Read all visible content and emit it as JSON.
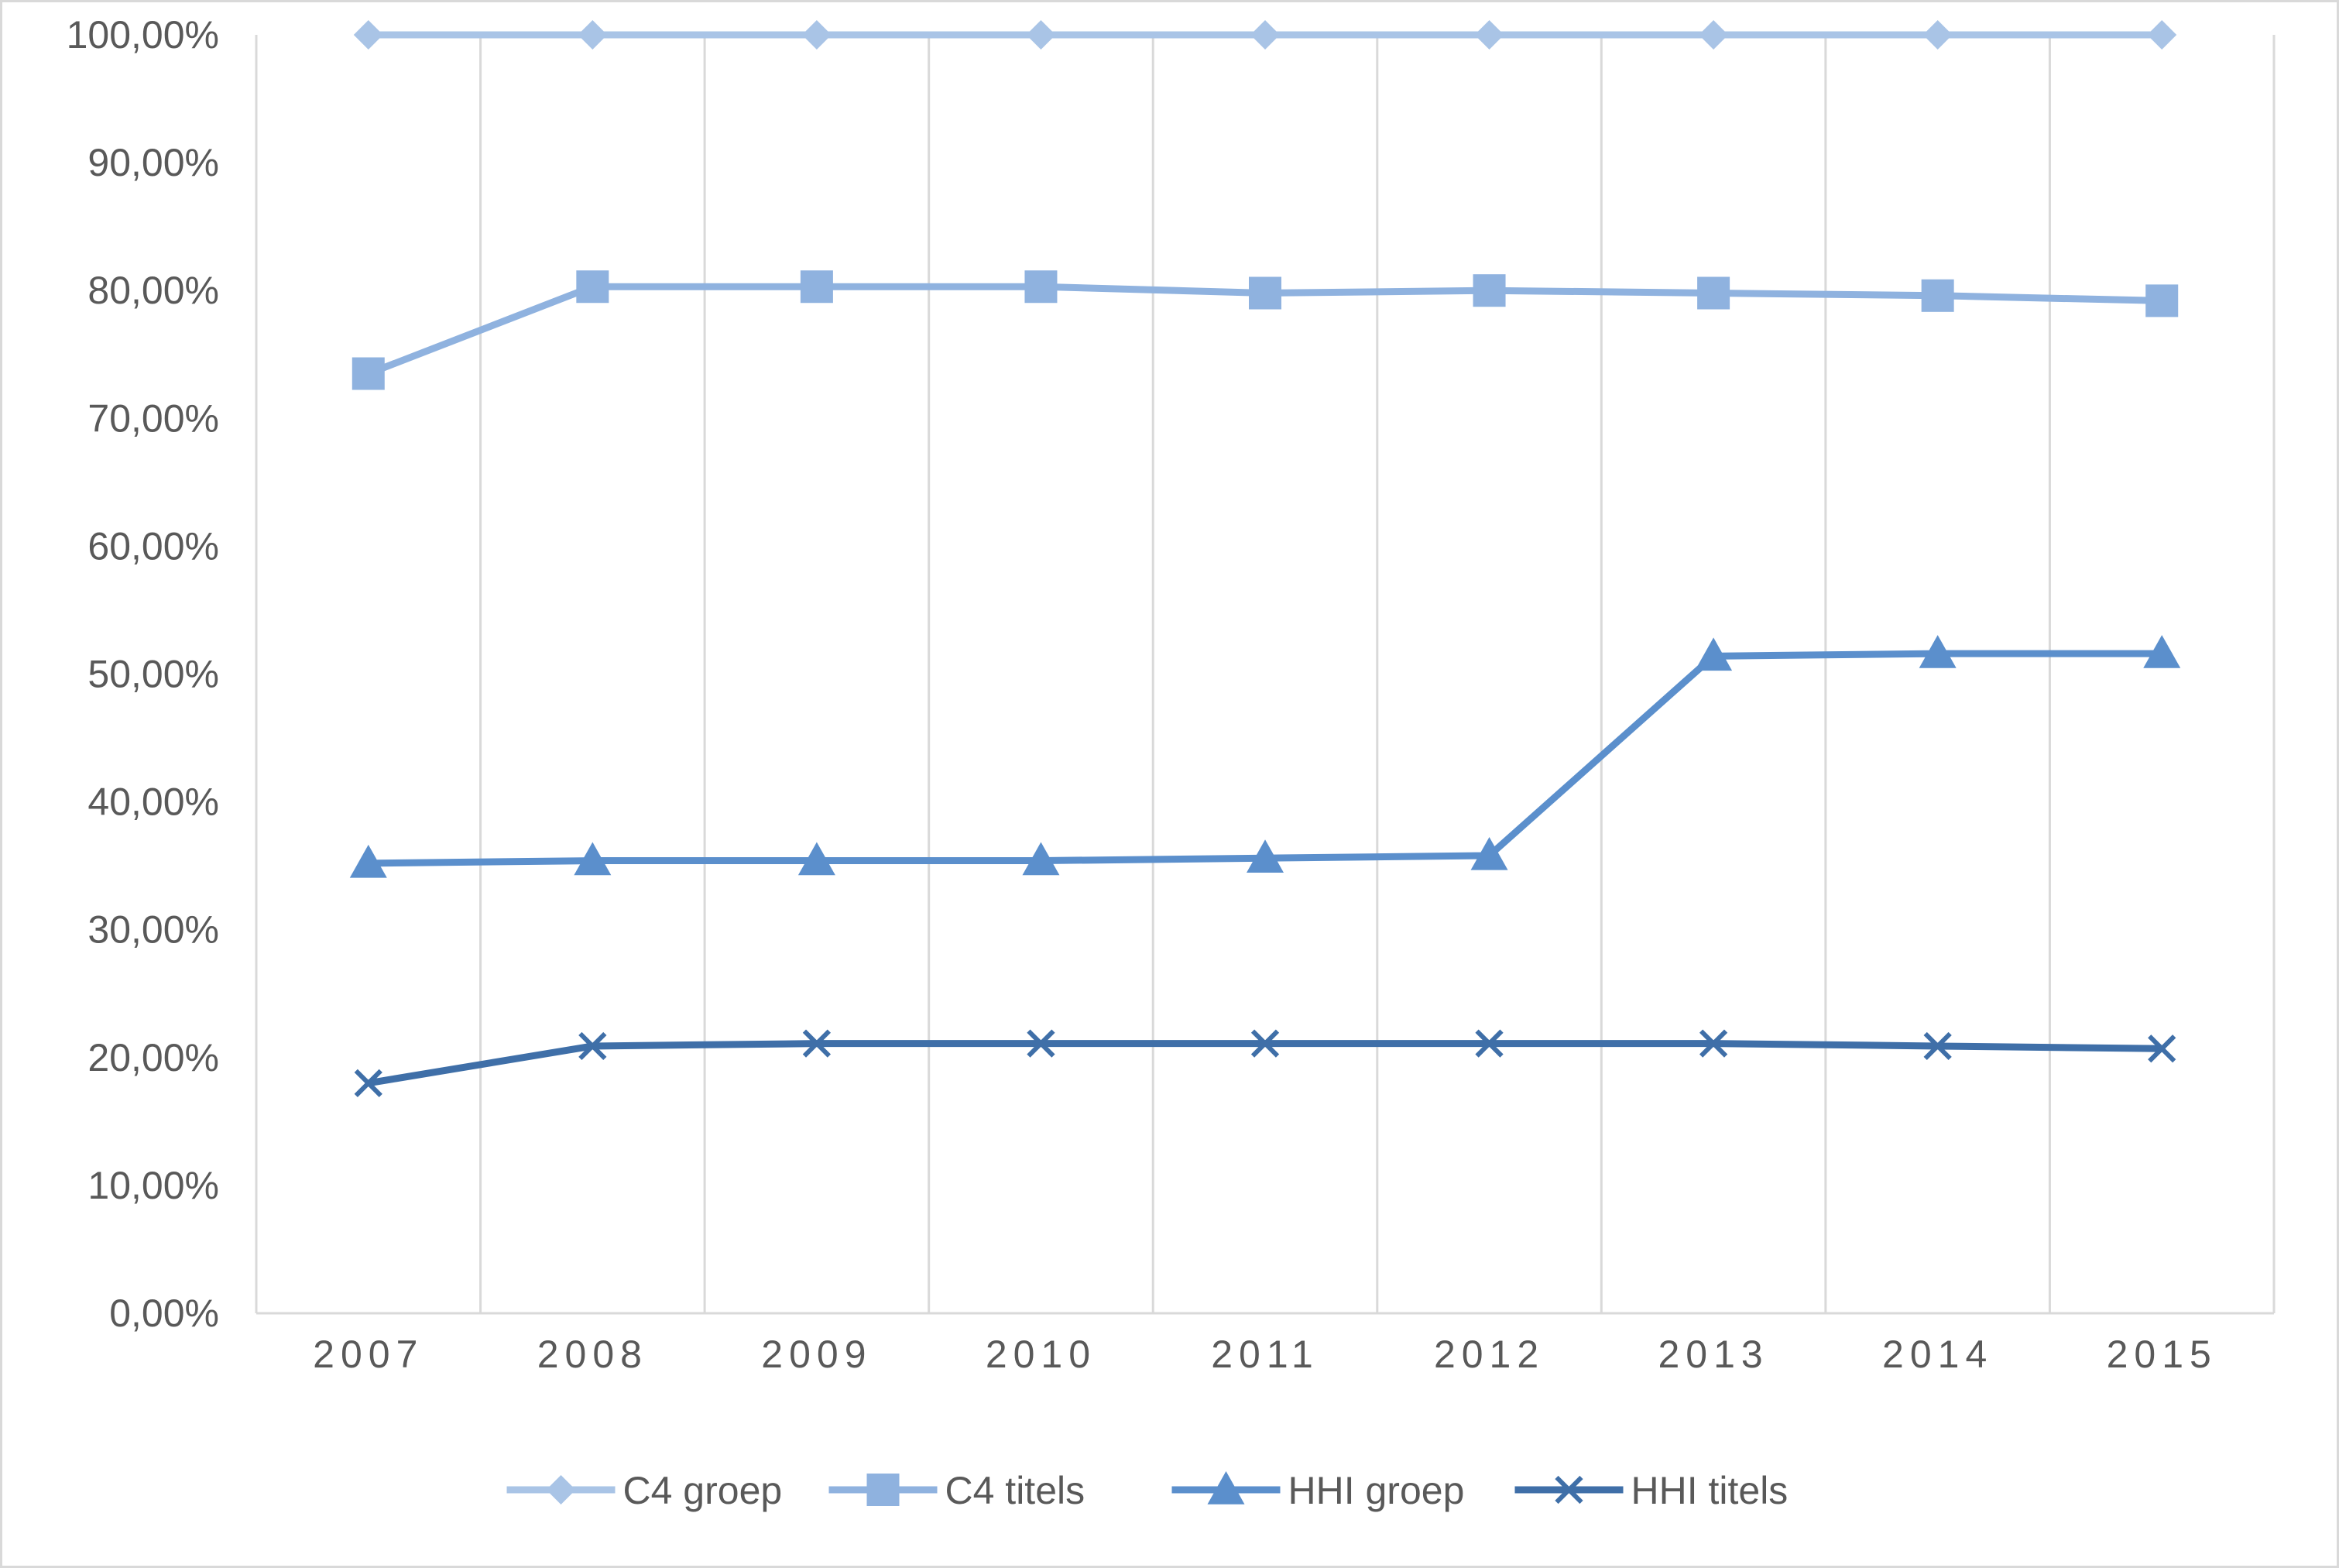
{
  "chart_data": {
    "type": "line",
    "title": "",
    "xlabel": "",
    "ylabel": "",
    "categories": [
      "2007",
      "2008",
      "2009",
      "2010",
      "2011",
      "2012",
      "2013",
      "2014",
      "2015"
    ],
    "ylim": [
      0,
      100
    ],
    "yticks": [
      {
        "value": 0,
        "label": "0,00%"
      },
      {
        "value": 10,
        "label": "10,00%"
      },
      {
        "value": 20,
        "label": "20,00%"
      },
      {
        "value": 30,
        "label": "30,00%"
      },
      {
        "value": 40,
        "label": "40,00%"
      },
      {
        "value": 50,
        "label": "50,00%"
      },
      {
        "value": 60,
        "label": "60,00%"
      },
      {
        "value": 70,
        "label": "70,00%"
      },
      {
        "value": 80,
        "label": "80,00%"
      },
      {
        "value": 90,
        "label": "90,00%"
      },
      {
        "value": 100,
        "label": "100,00%"
      }
    ],
    "grid": {
      "vertical": true,
      "horizontal": false
    },
    "legend": {
      "position": "bottom"
    },
    "series": [
      {
        "name": "C4 groep",
        "marker": "diamond",
        "color": "#a9c4e6",
        "values": [
          100,
          100,
          100,
          100,
          100,
          100,
          100,
          100,
          100
        ]
      },
      {
        "name": "C4 titels",
        "marker": "square",
        "color": "#8fb2df",
        "values": [
          73.5,
          80.3,
          80.3,
          80.3,
          79.8,
          80.0,
          79.8,
          79.6,
          79.2
        ]
      },
      {
        "name": "HHI groep",
        "marker": "triangle",
        "color": "#5b8fcc",
        "values": [
          35.2,
          35.4,
          35.4,
          35.4,
          35.6,
          35.8,
          51.4,
          51.6,
          51.6
        ]
      },
      {
        "name": "HHI titels",
        "marker": "x",
        "color": "#3f6fa8",
        "values": [
          18.0,
          20.9,
          21.1,
          21.1,
          21.1,
          21.1,
          21.1,
          20.9,
          20.7
        ]
      }
    ]
  }
}
